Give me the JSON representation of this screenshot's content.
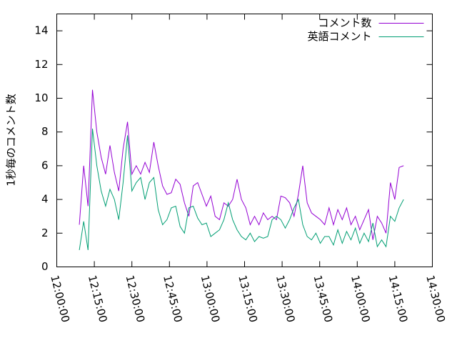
{
  "chart_data": {
    "type": "line",
    "y_label": "1秒毎のコメント数",
    "x": [
      "12:09:00",
      "12:10:45",
      "12:12:30",
      "12:14:15",
      "12:16:00",
      "12:17:45",
      "12:19:30",
      "12:21:15",
      "12:23:00",
      "12:24:45",
      "12:26:30",
      "12:28:15",
      "12:30:00",
      "12:31:45",
      "12:33:30",
      "12:35:15",
      "12:37:00",
      "12:38:45",
      "12:40:30",
      "12:42:15",
      "12:44:00",
      "12:45:45",
      "12:47:30",
      "12:49:15",
      "12:51:00",
      "12:52:45",
      "12:54:30",
      "12:56:15",
      "12:58:00",
      "12:59:45",
      "13:01:30",
      "13:03:15",
      "13:05:00",
      "13:06:45",
      "13:08:30",
      "13:10:15",
      "13:12:00",
      "13:13:45",
      "13:15:30",
      "13:17:15",
      "13:19:00",
      "13:20:45",
      "13:22:30",
      "13:24:15",
      "13:26:00",
      "13:27:45",
      "13:29:30",
      "13:31:15",
      "13:33:00",
      "13:34:45",
      "13:36:30",
      "13:38:15",
      "13:40:00",
      "13:41:45",
      "13:43:30",
      "13:45:15",
      "13:47:00",
      "13:48:45",
      "13:50:30",
      "13:52:15",
      "13:54:00",
      "13:55:45",
      "13:57:30",
      "13:59:15",
      "14:01:00",
      "14:02:45",
      "14:04:30",
      "14:06:15",
      "14:08:00",
      "14:09:45",
      "14:11:30",
      "14:13:15",
      "14:15:00",
      "14:16:45",
      "14:18:30"
    ],
    "series": [
      {
        "name": "コメント数",
        "color": "#9400d3",
        "values": [
          2.5,
          6.0,
          3.6,
          10.5,
          8.0,
          6.5,
          5.5,
          7.2,
          5.6,
          4.5,
          7.0,
          8.6,
          5.5,
          6.0,
          5.5,
          6.2,
          5.6,
          7.4,
          6.0,
          4.8,
          4.3,
          4.4,
          5.2,
          4.9,
          3.8,
          3.0,
          4.8,
          5.0,
          4.3,
          3.6,
          4.2,
          3.0,
          2.8,
          3.8,
          3.6,
          4.0,
          5.2,
          4.0,
          3.5,
          2.5,
          3.0,
          2.5,
          3.2,
          2.8,
          3.0,
          2.8,
          4.2,
          4.1,
          3.8,
          3.0,
          4.3,
          6.0,
          3.8,
          3.2,
          3.0,
          2.8,
          2.5,
          3.5,
          2.5,
          3.4,
          2.8,
          3.5,
          2.5,
          3.0,
          2.2,
          2.8,
          3.4,
          1.6,
          3.0,
          2.6,
          2.0,
          5.0,
          4.0,
          5.9,
          6.0
        ]
      },
      {
        "name": "英語コメント",
        "color": "#009e73",
        "values": [
          1.0,
          2.7,
          1.0,
          8.2,
          6.0,
          4.5,
          3.6,
          4.6,
          4.0,
          2.8,
          5.0,
          7.8,
          4.5,
          5.0,
          5.3,
          4.0,
          5.0,
          5.3,
          3.4,
          2.5,
          2.8,
          3.5,
          3.6,
          2.4,
          2.0,
          3.5,
          3.6,
          2.9,
          2.5,
          2.6,
          1.8,
          2.0,
          2.2,
          2.8,
          3.8,
          2.8,
          2.2,
          1.8,
          1.6,
          2.0,
          1.5,
          1.8,
          1.7,
          1.8,
          2.8,
          3.0,
          2.8,
          2.3,
          2.8,
          3.5,
          4.0,
          2.5,
          1.8,
          1.6,
          2.0,
          1.4,
          1.8,
          1.8,
          1.3,
          2.2,
          1.4,
          2.1,
          1.6,
          2.3,
          1.4,
          2.0,
          1.5,
          2.6,
          1.2,
          1.6,
          1.2,
          3.0,
          2.7,
          3.5,
          4.0
        ]
      }
    ],
    "xlim": [
      "12:00:00",
      "14:30:00"
    ],
    "xticks": [
      "12:00:00",
      "12:15:00",
      "12:30:00",
      "12:45:00",
      "13:00:00",
      "13:15:00",
      "13:30:00",
      "13:45:00",
      "14:00:00",
      "14:15:00",
      "14:30:00"
    ],
    "ylim": [
      0,
      15
    ],
    "yticks": [
      0,
      2,
      4,
      6,
      8,
      10,
      12,
      14
    ],
    "legend": "top-right"
  }
}
